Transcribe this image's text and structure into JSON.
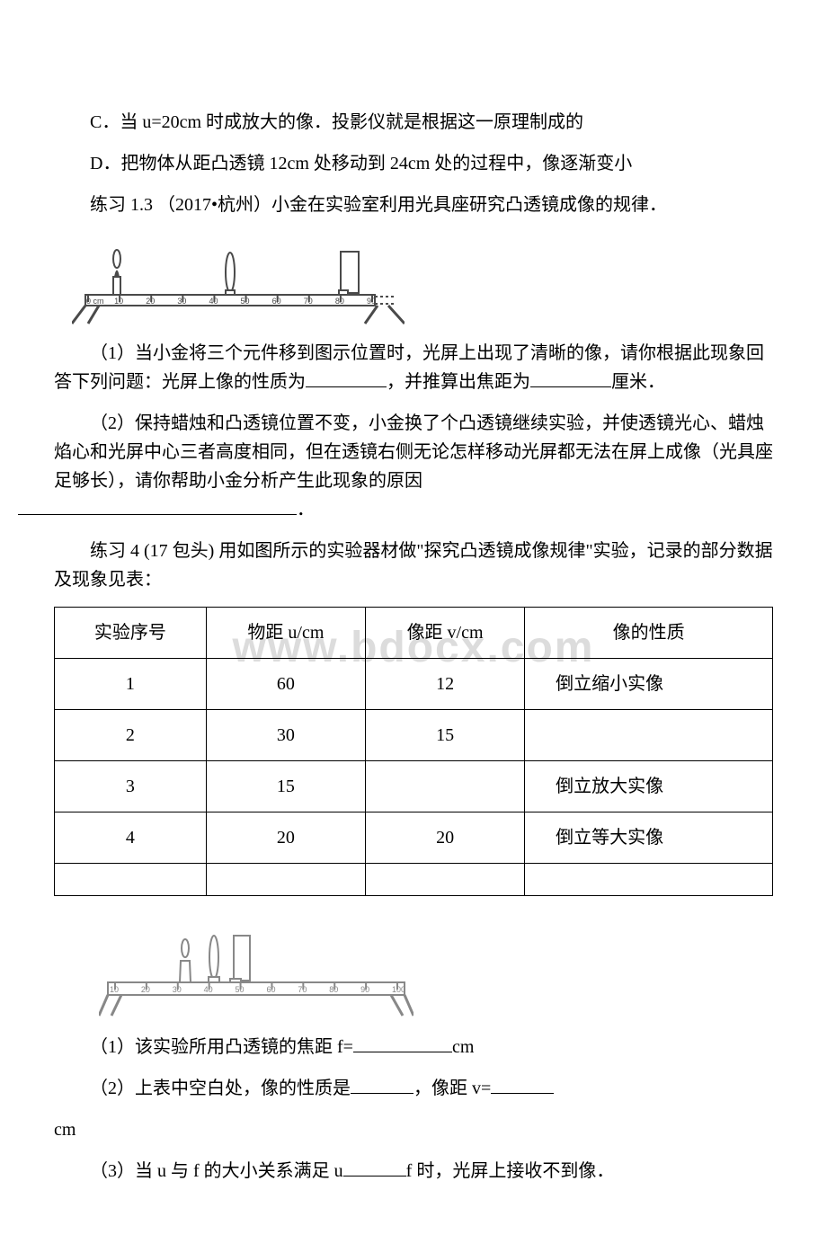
{
  "options": {
    "c": "C．当 u=20cm 时成放大的像．投影仪就是根据这一原理制成的",
    "d": "D．把物体从距凸透镜 12cm 处移动到 24cm 处的过程中，像逐渐变小"
  },
  "ex1_3": {
    "title": "练习 1.3 （2017•杭州）小金在实验室利用光具座研究凸透镜成像的规律．",
    "q1_a": "（1）当小金将三个元件移到图示位置时，光屏上出现了清晰的像，请你根据此现象回答下列问题：光屏上像的性质为",
    "q1_b": "，并推算出焦距为",
    "q1_c": "厘米．",
    "q2_a": "（2）保持蜡烛和凸透镜位置不变，小金换了个凸透镜继续实验，并使透镜光心、蜡烛焰心和光屏中心三者高度相同，但在透镜右侧无论怎样移动光屏都无法在屏上成像（光具座足够长），请你帮助小金分析产生此现象的原因",
    "q2_b": "．"
  },
  "ruler1": {
    "ticks": [
      "0 cm",
      "10",
      "20",
      "30",
      "40",
      "50",
      "60",
      "70",
      "80",
      "90"
    ],
    "candle_x": 0.1,
    "lens_x": 0.5,
    "screen_x": 0.9
  },
  "ex4": {
    "title": "练习 4 (17 包头) 用如图所示的实验器材做\"探究凸透镜成像规律\"实验，记录的部分数据及现象见表：",
    "headers": [
      "实验序号",
      "物距 u/cm",
      "像距 v/cm",
      "像的性质"
    ],
    "rows": [
      [
        "1",
        "60",
        "12",
        "倒立缩小实像"
      ],
      [
        "2",
        "30",
        "15",
        ""
      ],
      [
        "3",
        "15",
        "",
        "倒立放大实像"
      ],
      [
        "4",
        "20",
        "20",
        "倒立等大实像"
      ]
    ],
    "q1_a": "（1）该实验所用凸透镜的焦距 f=",
    "q1_b": "cm",
    "q2_a": "（2）上表中空白处，像的性质是",
    "q2_b": "，像距 v=",
    "q3": "cm",
    "q4_a": "（3）当 u 与 f 的大小关系满足 u",
    "q4_b": "f 时，光屏上接收不到像．"
  },
  "ruler2": {
    "ticks": [
      "10",
      "20",
      "30",
      "40",
      "50",
      "60",
      "70",
      "80",
      "90",
      "100"
    ]
  },
  "watermark": "www.bdocx.com",
  "colors": {
    "text": "#000000",
    "bg": "#ffffff",
    "watermark": "#dcdcdc",
    "ruler_stroke": "#4a4a4a"
  }
}
